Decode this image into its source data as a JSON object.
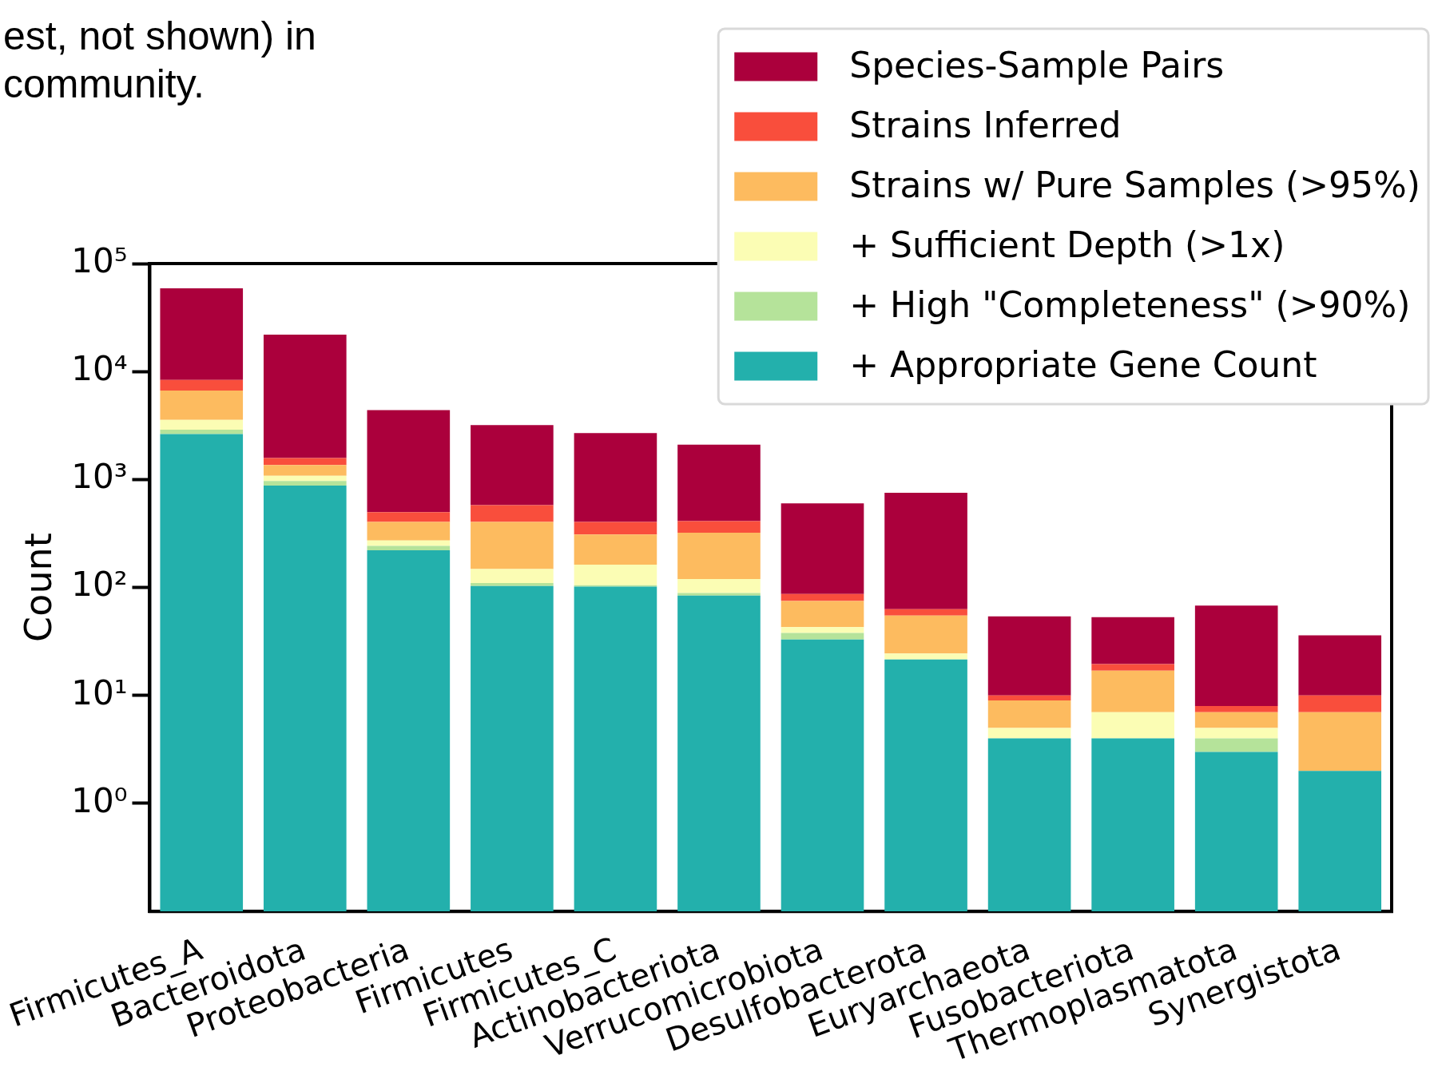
{
  "chart_data": {
    "type": "bar",
    "stacked": true,
    "log": true,
    "ylabel": "Count",
    "annotations": [
      "est, not shown) in",
      "community."
    ],
    "categories": [
      "Firmicutes_A",
      "Bacteroidota",
      "Proteobacteria",
      "Firmicutes",
      "Firmicutes_C",
      "Actinobacteriota",
      "Verrucomicrobiota",
      "Desulfobacterota",
      "Euryarchaeota",
      "Fusobacteriota",
      "Thermoplasmatota",
      "Synergistota"
    ],
    "series": [
      {
        "name": "+ Appropriate Gene Count",
        "color": "#23b0ac",
        "values": [
          2640,
          880,
          221,
          103,
          102,
          84,
          33,
          21.5,
          4,
          4,
          3,
          2
        ]
      },
      {
        "name": "+ High \"Completeness\" (>90%)",
        "color": "#b5e39a",
        "values": [
          260,
          87,
          22,
          7,
          3,
          5,
          5,
          null,
          null,
          null,
          1,
          null
        ]
      },
      {
        "name": "+ Sufficient Depth (>1x)",
        "color": "#fbfdb4",
        "values": [
          670,
          116,
          29,
          38,
          58,
          31,
          5,
          3,
          1,
          3,
          1,
          null
        ]
      },
      {
        "name": "Strains w/ Pure Samples (>95%)",
        "color": "#fdbb5f",
        "values": [
          3100,
          277,
          132,
          256,
          147,
          202,
          32,
          30.5,
          4,
          10,
          2,
          5
        ]
      },
      {
        "name": "Strains Inferred",
        "color": "#f94e3c",
        "values": [
          1700,
          220,
          94,
          176,
          94,
          90,
          12,
          8,
          1,
          2.5,
          1,
          3
        ]
      },
      {
        "name": "Species-Sample Pairs",
        "color": "#ab003c",
        "values": [
          50500,
          20400,
          3900,
          2610,
          2290,
          1690,
          515,
          692,
          44,
          33.5,
          60,
          26
        ]
      }
    ],
    "ylim": [
      0.1,
      100000
    ],
    "yticks": [
      {
        "value": 1,
        "label": "10⁰"
      },
      {
        "value": 10,
        "label": "10¹"
      },
      {
        "value": 100,
        "label": "10²"
      },
      {
        "value": 1000,
        "label": "10³"
      },
      {
        "value": 10000,
        "label": "10⁴"
      },
      {
        "value": 100000,
        "label": "10⁵"
      }
    ],
    "grid": false,
    "legend": "top right"
  }
}
